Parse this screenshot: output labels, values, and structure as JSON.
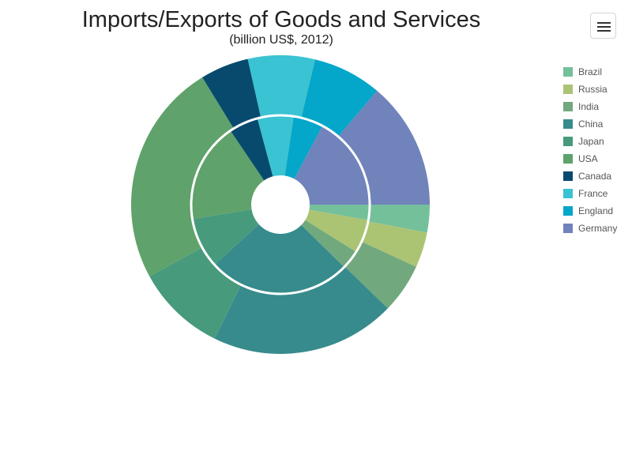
{
  "title": "Imports/Exports of Goods and Services",
  "subtitle": "(billion US$, 2012)",
  "menu_icon": "hamburger-menu-icon",
  "legend_placement": "right",
  "chart_data": {
    "type": "pie",
    "variant": "two-ring donut (inner ring: exports, outer ring: imports)",
    "title": "Imports/Exports of Goods and Services",
    "subtitle": "(billion US$, 2012)",
    "start_angle": "3 o'clock, clockwise",
    "categories": [
      "Brazil",
      "Russia",
      "India",
      "China",
      "Japan",
      "USA",
      "Canada",
      "France",
      "England",
      "Germany"
    ],
    "colors": [
      "#74c09a",
      "#abc473",
      "#72a87e",
      "#378b8c",
      "#479b7c",
      "#5fa26b",
      "#074a6e",
      "#3ac3d2",
      "#04a6c9",
      "#7183bb"
    ],
    "series": [
      {
        "ring": "inner",
        "values": [
          243,
          530,
          300,
          2249,
          799,
          1574,
          462,
          568,
          473,
          1493
        ]
      },
      {
        "ring": "outer",
        "values": [
          273,
          347,
          489,
          1818,
          886,
          2196,
          476,
          658,
          677,
          1252
        ]
      }
    ]
  }
}
